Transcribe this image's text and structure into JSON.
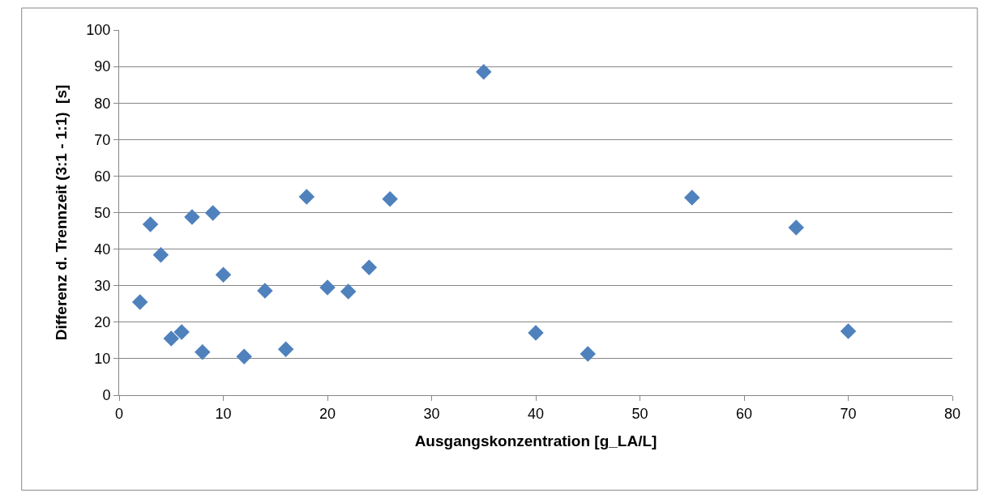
{
  "chart_data": {
    "type": "scatter",
    "xlabel": "Ausgangskonzentration [g_LA/L]",
    "ylabel": "Differenz d. Trennzeit (3:1 - 1:1)  [s]",
    "x": [
      2,
      3,
      4,
      5,
      6,
      7,
      8,
      9,
      10,
      12,
      14,
      16,
      18,
      20,
      22,
      24,
      26,
      35,
      40,
      45,
      55,
      65,
      70
    ],
    "series": [
      {
        "color": "#4f81bd",
        "values": [
          25.5,
          46.8,
          38.4,
          15.5,
          17.3,
          48.8,
          11.8,
          49.9,
          33.0,
          10.6,
          28.6,
          12.6,
          54.3,
          29.5,
          28.4,
          35.0,
          53.7,
          88.5,
          17.1,
          11.3,
          54.1,
          45.9,
          17.5
        ]
      }
    ],
    "xlim": [
      0,
      80
    ],
    "xticks": [
      0,
      10,
      20,
      30,
      40,
      50,
      60,
      70,
      80
    ],
    "ylim": [
      0,
      100
    ],
    "yticks": [
      0,
      10,
      20,
      30,
      40,
      50,
      60,
      70,
      80,
      90,
      100
    ],
    "grid": "y",
    "marker": "diamond"
  }
}
